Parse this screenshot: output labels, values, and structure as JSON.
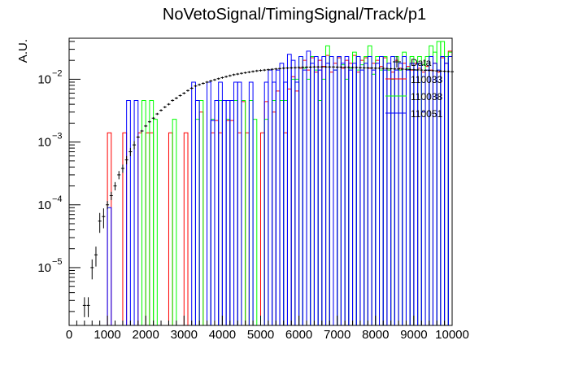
{
  "chart_data": {
    "type": "step-histogram",
    "title": "NoVetoSignal/TimingSignal/Track/p1",
    "xlabel": "",
    "ylabel": "A.U.",
    "xlim": [
      0,
      10000
    ],
    "ylim": [
      1.2e-06,
      0.045
    ],
    "yscale": "log",
    "grid": false,
    "legend_position": "top-right",
    "x_ticks": [
      0,
      1000,
      2000,
      3000,
      4000,
      5000,
      6000,
      7000,
      8000,
      9000,
      10000
    ],
    "x_tick_labels": [
      "0",
      "1000",
      "2000",
      "3000",
      "4000",
      "5000",
      "6000",
      "7000",
      "8000",
      "9000",
      "10000"
    ],
    "y_ticks": [
      1e-05,
      0.0001,
      0.001,
      0.01
    ],
    "y_tick_labels": [
      {
        "base": "10",
        "exp": "−5"
      },
      {
        "base": "10",
        "exp": "−4"
      },
      {
        "base": "10",
        "exp": "−3"
      },
      {
        "base": "10",
        "exp": "−2"
      }
    ],
    "legend": [
      {
        "label": "Data",
        "color": "#000000",
        "style": "errorbar"
      },
      {
        "label": "110033",
        "color": "#ff0000",
        "style": "line"
      },
      {
        "label": "110038",
        "color": "#00ff00",
        "style": "line"
      },
      {
        "label": "110051",
        "color": "#0000ff",
        "style": "line"
      }
    ],
    "data_points": [
      [
        400,
        2.5e-06
      ],
      [
        500,
        2.5e-06
      ],
      [
        600,
        1e-05
      ],
      [
        700,
        1.6e-05
      ],
      [
        800,
        5.5e-05
      ],
      [
        900,
        6.5e-05
      ],
      [
        1000,
        0.0001
      ],
      [
        1100,
        0.00014
      ],
      [
        1200,
        0.0002
      ],
      [
        1300,
        0.0003
      ],
      [
        1400,
        0.00038
      ],
      [
        1500,
        0.00052
      ],
      [
        1600,
        0.0007
      ],
      [
        1700,
        0.0009
      ],
      [
        1800,
        0.0012
      ],
      [
        1900,
        0.0015
      ],
      [
        2000,
        0.0018
      ],
      [
        2100,
        0.0021
      ],
      [
        2200,
        0.0024
      ],
      [
        2300,
        0.0028
      ],
      [
        2400,
        0.0032
      ],
      [
        2500,
        0.0036
      ],
      [
        2600,
        0.004
      ],
      [
        2700,
        0.0046
      ],
      [
        2800,
        0.005
      ],
      [
        2900,
        0.0055
      ],
      [
        3000,
        0.006
      ],
      [
        3100,
        0.0066
      ],
      [
        3200,
        0.0072
      ],
      [
        3300,
        0.0078
      ],
      [
        3400,
        0.0082
      ],
      [
        3500,
        0.0086
      ],
      [
        3600,
        0.009
      ],
      [
        3700,
        0.0094
      ],
      [
        3800,
        0.0098
      ],
      [
        3900,
        0.0102
      ],
      [
        4000,
        0.0106
      ],
      [
        4100,
        0.011
      ],
      [
        4200,
        0.0114
      ],
      [
        4300,
        0.0118
      ],
      [
        4400,
        0.0121
      ],
      [
        4500,
        0.0124
      ],
      [
        4600,
        0.0127
      ],
      [
        4700,
        0.013
      ],
      [
        4800,
        0.0133
      ],
      [
        4900,
        0.0136
      ],
      [
        5000,
        0.0138
      ],
      [
        5100,
        0.014
      ],
      [
        5200,
        0.0142
      ],
      [
        5300,
        0.0144
      ],
      [
        5400,
        0.0146
      ],
      [
        5500,
        0.0148
      ],
      [
        5600,
        0.015
      ],
      [
        5700,
        0.0151
      ],
      [
        5800,
        0.0152
      ],
      [
        5900,
        0.0153
      ],
      [
        6000,
        0.0154
      ],
      [
        6100,
        0.0155
      ],
      [
        6200,
        0.0156
      ],
      [
        6300,
        0.0156
      ],
      [
        6400,
        0.0157
      ],
      [
        6500,
        0.0157
      ],
      [
        6600,
        0.0157
      ],
      [
        6700,
        0.0157
      ],
      [
        6800,
        0.0157
      ],
      [
        6900,
        0.0157
      ],
      [
        7000,
        0.0156
      ],
      [
        7100,
        0.0156
      ],
      [
        7200,
        0.0155
      ],
      [
        7300,
        0.0155
      ],
      [
        7400,
        0.0154
      ],
      [
        7500,
        0.0154
      ],
      [
        7600,
        0.0153
      ],
      [
        7700,
        0.0152
      ],
      [
        7800,
        0.0152
      ],
      [
        7900,
        0.0151
      ],
      [
        8000,
        0.015
      ],
      [
        8100,
        0.015
      ],
      [
        8200,
        0.0149
      ],
      [
        8300,
        0.0148
      ],
      [
        8400,
        0.0147
      ],
      [
        8500,
        0.0146
      ],
      [
        8600,
        0.0146
      ],
      [
        8700,
        0.0145
      ],
      [
        8800,
        0.0144
      ],
      [
        8900,
        0.0143
      ],
      [
        9000,
        0.0142
      ],
      [
        9100,
        0.0141
      ],
      [
        9200,
        0.014
      ],
      [
        9300,
        0.0139
      ],
      [
        9400,
        0.0138
      ],
      [
        9500,
        0.0137
      ],
      [
        9600,
        0.0136
      ],
      [
        9700,
        0.0135
      ],
      [
        9800,
        0.0134
      ],
      [
        9900,
        0.0133
      ],
      [
        10000,
        0.0132
      ]
    ],
    "series": [
      {
        "name": "110033",
        "color": "#ff0000",
        "bin_width": 100,
        "bins": [
          [
            1000,
            0.0014
          ],
          [
            1400,
            0.0014
          ],
          [
            1800,
            0.0014
          ],
          [
            2000,
            0.0014
          ],
          [
            2100,
            0.0014
          ],
          [
            2600,
            0.0014
          ],
          [
            3000,
            0.0014
          ],
          [
            3400,
            0.003
          ],
          [
            3700,
            0.0014
          ],
          [
            3800,
            0.0022
          ],
          [
            3900,
            0.0014
          ],
          [
            4100,
            0.0022
          ],
          [
            4200,
            0.0022
          ],
          [
            4400,
            0.0014
          ],
          [
            4500,
            0.0044
          ],
          [
            4600,
            0.0014
          ],
          [
            5000,
            0.0014
          ],
          [
            5100,
            0.0044
          ],
          [
            5300,
            0.003
          ],
          [
            5400,
            0.0065
          ],
          [
            5600,
            0.0014
          ],
          [
            5700,
            0.007
          ],
          [
            5800,
            0.011
          ],
          [
            5900,
            0.0065
          ],
          [
            6000,
            0.015
          ],
          [
            6100,
            0.02
          ],
          [
            6200,
            0.014
          ],
          [
            6300,
            0.022
          ],
          [
            6400,
            0.013
          ],
          [
            6500,
            0.02
          ],
          [
            6600,
            0.016
          ],
          [
            6700,
            0.024
          ],
          [
            6800,
            0.013
          ],
          [
            6900,
            0.018
          ],
          [
            7000,
            0.022
          ],
          [
            7100,
            0.015
          ],
          [
            7200,
            0.02
          ],
          [
            7300,
            0.018
          ],
          [
            7400,
            0.024
          ],
          [
            7500,
            0.013
          ],
          [
            7600,
            0.02
          ],
          [
            7700,
            0.022
          ],
          [
            7800,
            0.015
          ],
          [
            7900,
            0.018
          ],
          [
            8000,
            0.02
          ],
          [
            8100,
            0.016
          ],
          [
            8200,
            0.022
          ],
          [
            8300,
            0.014
          ],
          [
            8400,
            0.013
          ],
          [
            8500,
            0.02
          ],
          [
            8600,
            0.015
          ],
          [
            8700,
            0.018
          ],
          [
            8800,
            0.016
          ],
          [
            8900,
            0.014
          ],
          [
            9000,
            0.018
          ],
          [
            9100,
            0.015
          ],
          [
            9200,
            0.013
          ],
          [
            9300,
            0.016
          ],
          [
            9400,
            0.014
          ],
          [
            9500,
            0.018
          ],
          [
            9600,
            0.013
          ],
          [
            9700,
            0.022
          ],
          [
            9800,
            0.018
          ],
          [
            9900,
            0.028
          ]
        ]
      },
      {
        "name": "110038",
        "color": "#00ff00",
        "bin_width": 100,
        "bins": [
          [
            1900,
            0.0046
          ],
          [
            2100,
            0.0046
          ],
          [
            2200,
            0.0023
          ],
          [
            2700,
            0.0023
          ],
          [
            3300,
            0.0023
          ],
          [
            3400,
            0.0046
          ],
          [
            3700,
            0.0023
          ],
          [
            3900,
            0.0046
          ],
          [
            4100,
            0.0023
          ],
          [
            4300,
            0.0046
          ],
          [
            4500,
            0.0046
          ],
          [
            4700,
            0.0046
          ],
          [
            4800,
            0.0023
          ],
          [
            5100,
            0.0023
          ],
          [
            5300,
            0.0046
          ],
          [
            5500,
            0.0046
          ],
          [
            5600,
            0.0046
          ],
          [
            5800,
            0.01
          ],
          [
            5900,
            0.01
          ],
          [
            6000,
            0.023
          ],
          [
            6100,
            0.015
          ],
          [
            6200,
            0.01
          ],
          [
            6300,
            0.023
          ],
          [
            6400,
            0.014
          ],
          [
            6500,
            0.0046
          ],
          [
            6600,
            0.01
          ],
          [
            6700,
            0.034
          ],
          [
            6800,
            0.023
          ],
          [
            6900,
            0.014
          ],
          [
            7000,
            0.023
          ],
          [
            7100,
            0.017
          ],
          [
            7200,
            0.01
          ],
          [
            7300,
            0.015
          ],
          [
            7400,
            0.027
          ],
          [
            7500,
            0.014
          ],
          [
            7600,
            0.017
          ],
          [
            7700,
            0.023
          ],
          [
            7800,
            0.034
          ],
          [
            7900,
            0.012
          ],
          [
            8000,
            0.023
          ],
          [
            8100,
            0.014
          ],
          [
            8200,
            0.023
          ],
          [
            8300,
            0.014
          ],
          [
            8400,
            0.01
          ],
          [
            8500,
            0.023
          ],
          [
            8600,
            0.014
          ],
          [
            8700,
            0.027
          ],
          [
            8800,
            0.015
          ],
          [
            8900,
            0.023
          ],
          [
            9000,
            0.014
          ],
          [
            9100,
            0.023
          ],
          [
            9200,
            0.017
          ],
          [
            9300,
            0.023
          ],
          [
            9400,
            0.034
          ],
          [
            9500,
            0.027
          ],
          [
            9600,
            0.04
          ],
          [
            9700,
            0.04
          ],
          [
            9800,
            0.023
          ],
          [
            9900,
            0.027
          ]
        ]
      },
      {
        "name": "110051",
        "color": "#0000ff",
        "bin_width": 100,
        "bins": [
          [
            1000,
            9e-05
          ],
          [
            1500,
            0.0046
          ],
          [
            1700,
            0.0046
          ],
          [
            3200,
            0.009
          ],
          [
            3300,
            0.0046
          ],
          [
            3600,
            0.009
          ],
          [
            3700,
            0.0022
          ],
          [
            3800,
            0.0046
          ],
          [
            3900,
            0.009
          ],
          [
            4000,
            0.0046
          ],
          [
            4100,
            0.0046
          ],
          [
            4200,
            0.0046
          ],
          [
            4300,
            0.009
          ],
          [
            4400,
            0.009
          ],
          [
            4700,
            0.009
          ],
          [
            5100,
            0.009
          ],
          [
            5200,
            0.014
          ],
          [
            5300,
            0.009
          ],
          [
            5400,
            0.014
          ],
          [
            5500,
            0.018
          ],
          [
            5600,
            0.009
          ],
          [
            5700,
            0.025
          ],
          [
            5800,
            0.02
          ],
          [
            5900,
            0.009
          ],
          [
            6000,
            0.023
          ],
          [
            6100,
            0.014
          ],
          [
            6200,
            0.028
          ],
          [
            6300,
            0.018
          ],
          [
            6400,
            0.023
          ],
          [
            6500,
            0.014
          ],
          [
            6600,
            0.023
          ],
          [
            6700,
            0.018
          ],
          [
            6800,
            0.023
          ],
          [
            6900,
            0.014
          ],
          [
            7000,
            0.023
          ],
          [
            7100,
            0.018
          ],
          [
            7200,
            0.023
          ],
          [
            7300,
            0.014
          ],
          [
            7400,
            0.018
          ],
          [
            7500,
            0.023
          ],
          [
            7600,
            0.014
          ],
          [
            7700,
            0.018
          ],
          [
            7800,
            0.023
          ],
          [
            7900,
            0.014
          ],
          [
            8000,
            0.018
          ],
          [
            8100,
            0.023
          ],
          [
            8200,
            0.014
          ],
          [
            8300,
            0.018
          ],
          [
            8400,
            0.023
          ],
          [
            8500,
            0.014
          ],
          [
            8600,
            0.018
          ],
          [
            8700,
            0.023
          ],
          [
            8800,
            0.014
          ],
          [
            8900,
            0.018
          ],
          [
            9000,
            0.014
          ],
          [
            9100,
            0.018
          ],
          [
            9200,
            0.003
          ],
          [
            9300,
            0.014
          ],
          [
            9400,
            0.023
          ],
          [
            9500,
            0.018
          ],
          [
            9600,
            0.014
          ],
          [
            9700,
            0.023
          ],
          [
            9800,
            0.018
          ],
          [
            9900,
            0.023
          ]
        ]
      }
    ]
  }
}
